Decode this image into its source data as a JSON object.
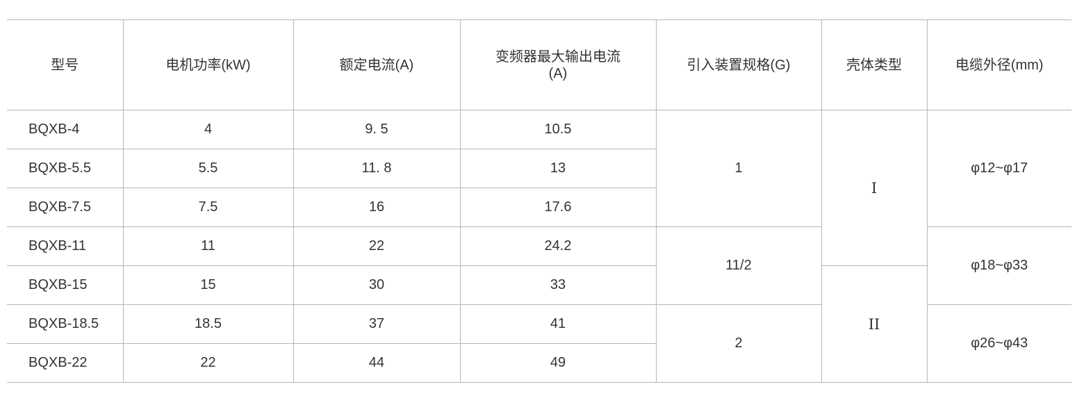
{
  "headers": [
    "型号",
    "电机功率(kW)",
    "额定电流(A)",
    "变频器最大输出电流(A)",
    "引入装置规格(G)",
    "壳体类型",
    "电缆外径(mm)"
  ],
  "rows": [
    {
      "model": "BQXB-4",
      "power": "4",
      "rated_current": "9. 5",
      "max_output_current": "10.5"
    },
    {
      "model": "BQXB-5.5",
      "power": "5.5",
      "rated_current": "11. 8",
      "max_output_current": "13"
    },
    {
      "model": "BQXB-7.5",
      "power": "7.5",
      "rated_current": "16",
      "max_output_current": "17.6"
    },
    {
      "model": "BQXB-11",
      "power": "11",
      "rated_current": "22",
      "max_output_current": "24.2"
    },
    {
      "model": "BQXB-15",
      "power": "15",
      "rated_current": "30",
      "max_output_current": "33"
    },
    {
      "model": "BQXB-18.5",
      "power": "18.5",
      "rated_current": "37",
      "max_output_current": "41"
    },
    {
      "model": "BQXB-22",
      "power": "22",
      "rated_current": "44",
      "max_output_current": "49"
    }
  ],
  "intro_spec": [
    "1",
    "11/2",
    "2"
  ],
  "shell_type": [
    "I",
    "II"
  ],
  "cable_diameter": [
    "φ12~φ17",
    "φ18~φ33",
    "φ26~φ43"
  ]
}
